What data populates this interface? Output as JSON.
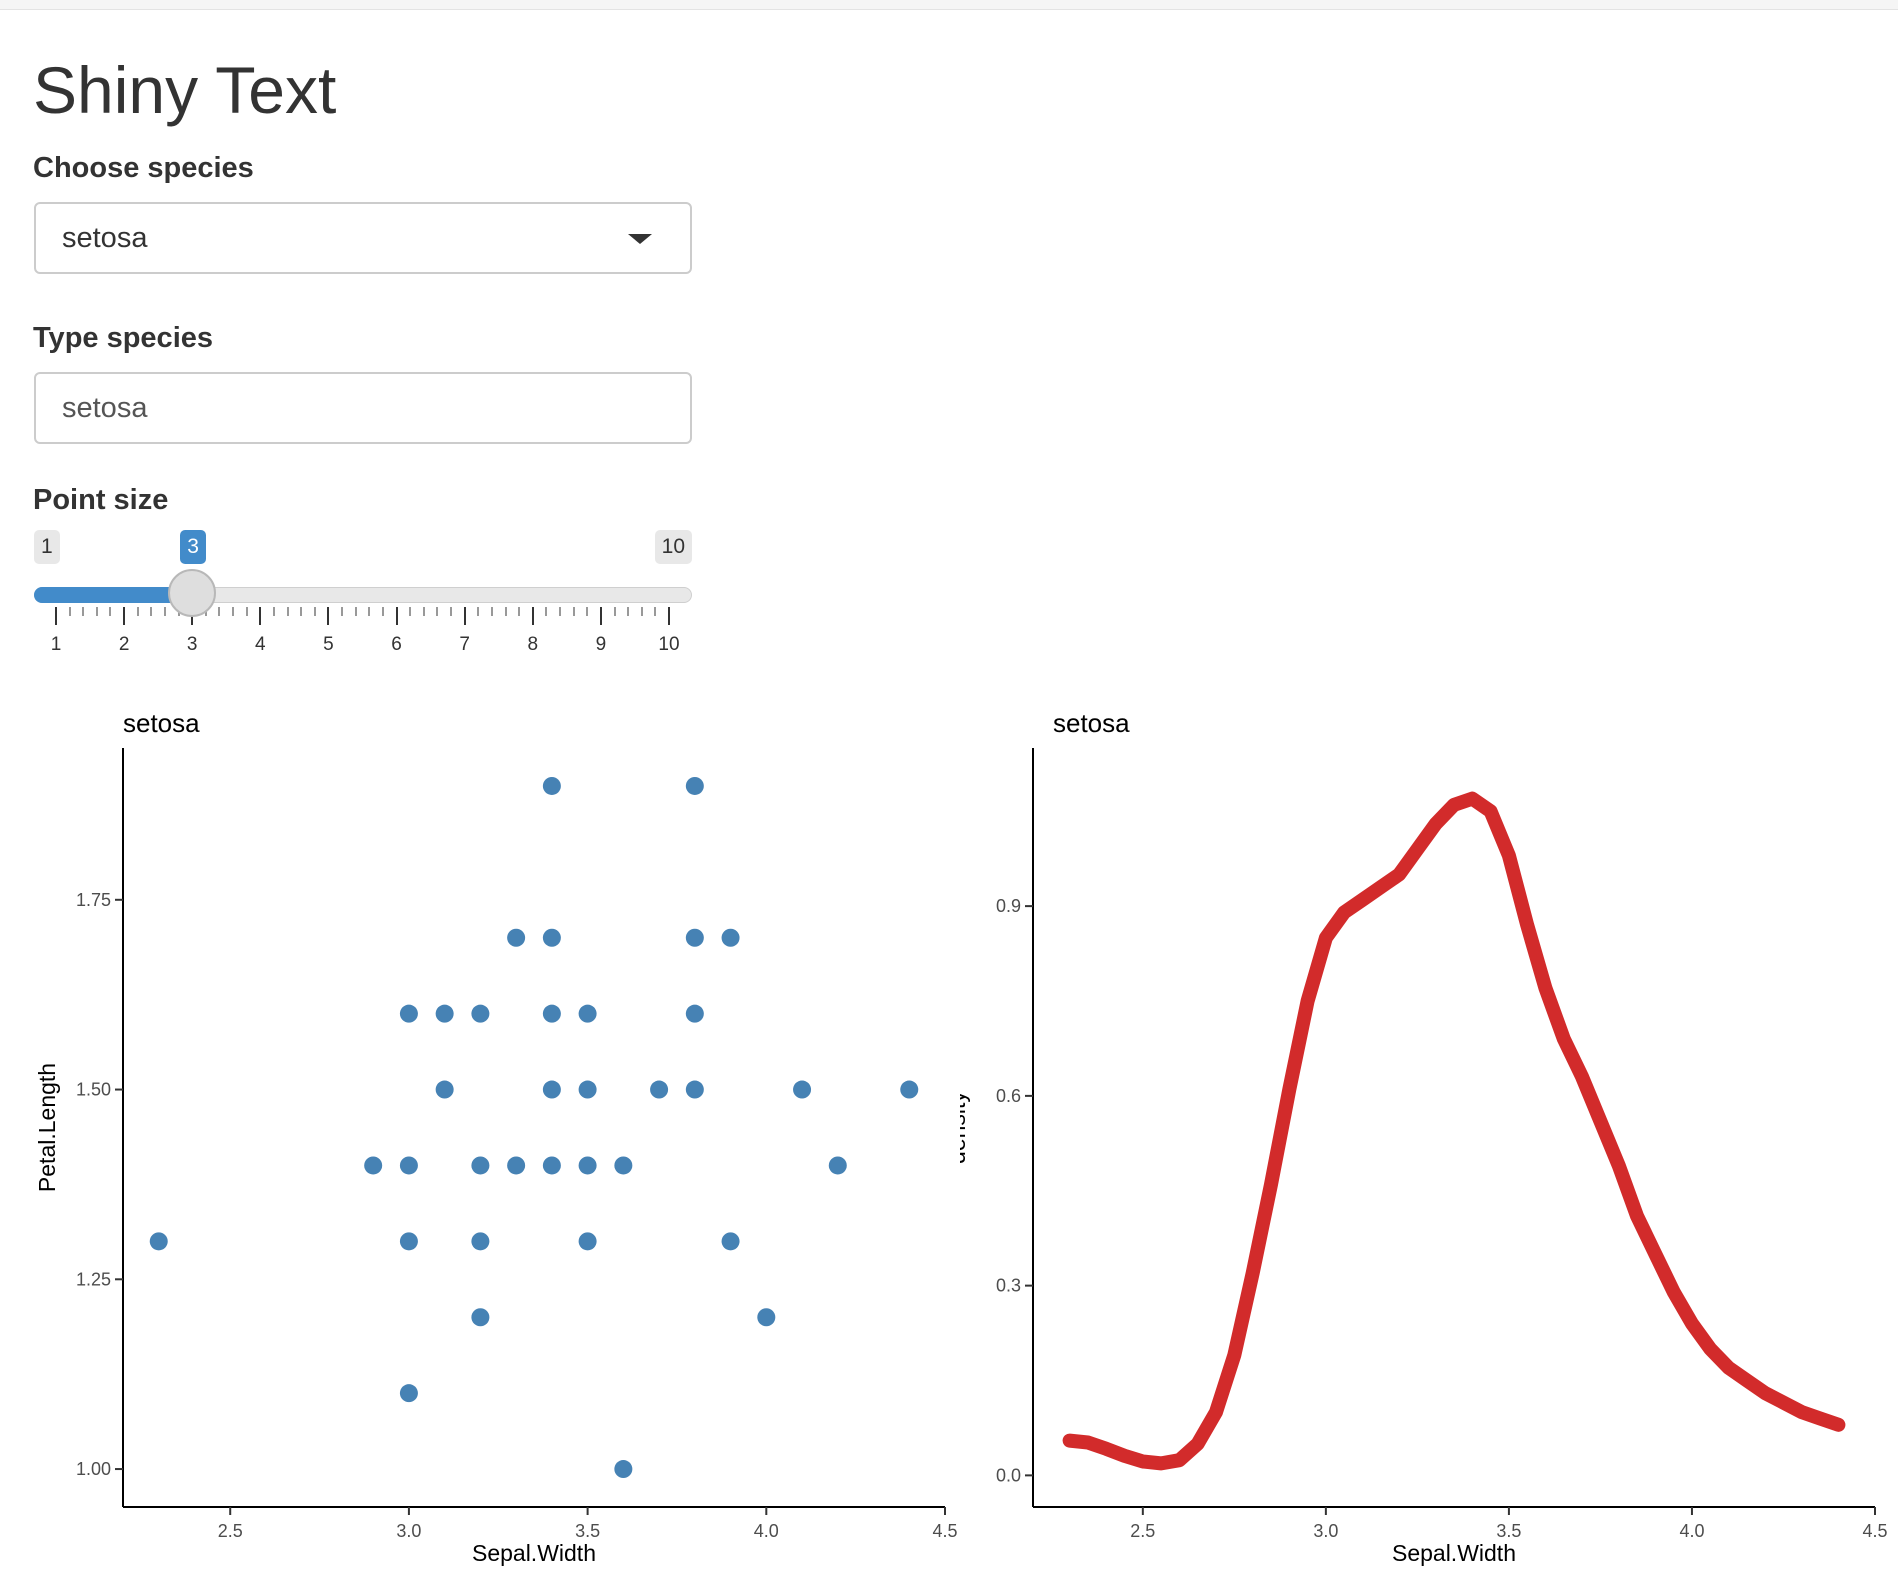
{
  "app": {
    "title": "Shiny Text"
  },
  "controls": {
    "species_select": {
      "label": "Choose species",
      "value": "setosa"
    },
    "species_text": {
      "label": "Type species",
      "value": "setosa"
    },
    "point_size": {
      "label": "Point size",
      "min": 1,
      "max": 10,
      "value": 3,
      "min_label": "1",
      "max_label": "10",
      "value_label": "3",
      "ticks": [
        "1",
        "2",
        "3",
        "4",
        "5",
        "6",
        "7",
        "8",
        "9",
        "10"
      ]
    }
  },
  "colors": {
    "accent": "#428bca",
    "points": "#4682b4",
    "density": "#d22b2b"
  },
  "chart_data": [
    {
      "type": "scatter",
      "title": "setosa",
      "xlabel": "Sepal.Width",
      "ylabel": "Petal.Length",
      "xlim": [
        2.2,
        4.5
      ],
      "ylim": [
        0.95,
        1.95
      ],
      "xticks": [
        "2.5",
        "3.0",
        "3.5",
        "4.0",
        "4.5"
      ],
      "yticks": [
        "1.00",
        "1.25",
        "1.50",
        "1.75"
      ],
      "grid": false,
      "points": [
        [
          2.3,
          1.3
        ],
        [
          2.9,
          1.4
        ],
        [
          3.0,
          1.6
        ],
        [
          3.0,
          1.4
        ],
        [
          3.0,
          1.3
        ],
        [
          3.0,
          1.1
        ],
        [
          3.1,
          1.6
        ],
        [
          3.1,
          1.5
        ],
        [
          3.2,
          1.6
        ],
        [
          3.2,
          1.4
        ],
        [
          3.2,
          1.3
        ],
        [
          3.2,
          1.2
        ],
        [
          3.3,
          1.7
        ],
        [
          3.3,
          1.4
        ],
        [
          3.4,
          1.9
        ],
        [
          3.4,
          1.7
        ],
        [
          3.4,
          1.6
        ],
        [
          3.4,
          1.5
        ],
        [
          3.4,
          1.4
        ],
        [
          3.5,
          1.6
        ],
        [
          3.5,
          1.5
        ],
        [
          3.5,
          1.4
        ],
        [
          3.5,
          1.3
        ],
        [
          3.6,
          1.4
        ],
        [
          3.6,
          1.0
        ],
        [
          3.7,
          1.5
        ],
        [
          3.8,
          1.9
        ],
        [
          3.8,
          1.7
        ],
        [
          3.8,
          1.6
        ],
        [
          3.8,
          1.5
        ],
        [
          3.9,
          1.7
        ],
        [
          3.9,
          1.3
        ],
        [
          4.0,
          1.2
        ],
        [
          4.1,
          1.5
        ],
        [
          4.2,
          1.4
        ],
        [
          4.4,
          1.5
        ]
      ]
    },
    {
      "type": "line",
      "title": "setosa",
      "xlabel": "Sepal.Width",
      "ylabel": "density",
      "xlim": [
        2.2,
        4.5
      ],
      "ylim": [
        -0.05,
        1.15
      ],
      "xticks": [
        "2.5",
        "3.0",
        "3.5",
        "4.0",
        "4.5"
      ],
      "yticks": [
        "0.0",
        "0.3",
        "0.6",
        "0.9"
      ],
      "grid": false,
      "x": [
        2.3,
        2.35,
        2.4,
        2.45,
        2.5,
        2.55,
        2.6,
        2.65,
        2.7,
        2.75,
        2.8,
        2.85,
        2.9,
        2.95,
        3.0,
        3.05,
        3.1,
        3.15,
        3.2,
        3.25,
        3.3,
        3.35,
        3.4,
        3.45,
        3.5,
        3.55,
        3.6,
        3.65,
        3.7,
        3.75,
        3.8,
        3.85,
        3.9,
        3.95,
        4.0,
        4.05,
        4.1,
        4.15,
        4.2,
        4.25,
        4.3,
        4.35,
        4.4
      ],
      "y": [
        0.055,
        0.052,
        0.042,
        0.031,
        0.022,
        0.019,
        0.024,
        0.05,
        0.1,
        0.19,
        0.32,
        0.46,
        0.61,
        0.75,
        0.85,
        0.89,
        0.91,
        0.93,
        0.95,
        0.99,
        1.03,
        1.06,
        1.07,
        1.05,
        0.98,
        0.87,
        0.77,
        0.69,
        0.63,
        0.56,
        0.49,
        0.41,
        0.35,
        0.29,
        0.24,
        0.2,
        0.17,
        0.15,
        0.13,
        0.115,
        0.1,
        0.09,
        0.08
      ]
    }
  ]
}
